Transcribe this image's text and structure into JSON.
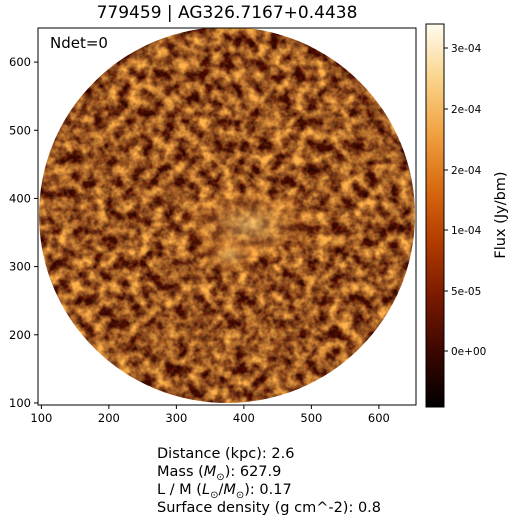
{
  "title": "779459 | AG326.7167+0.4438",
  "ndet_label": "Ndet=0",
  "colorbar": {
    "label": "Flux (Jy/bm)",
    "ticks": [
      "0e+00",
      "5e-05",
      "1e-04",
      "2e-04",
      "2e-04",
      "3e-04"
    ],
    "colormap": [
      "#000000",
      "#3a0600",
      "#7a1a00",
      "#b03c00",
      "#d86a10",
      "#f0a040",
      "#fad58c",
      "#fffbef"
    ]
  },
  "x_axis": {
    "ticks": [
      "100",
      "200",
      "300",
      "400",
      "500",
      "600"
    ],
    "range": [
      95,
      655
    ]
  },
  "y_axis": {
    "ticks": [
      "100",
      "200",
      "300",
      "400",
      "500",
      "600"
    ],
    "range": [
      97,
      650
    ]
  },
  "info": {
    "distance_label": "Distance (kpc): ",
    "distance_value": "2.6",
    "mass_label_pre": "Mass (",
    "mass_unit_main": "M",
    "mass_unit_sub": "⊙",
    "mass_label_post": "): ",
    "mass_value": "627.9",
    "lm_label_pre": "L / M (",
    "lm_unit_l": "L",
    "lm_unit_l_sub": "⊙",
    "lm_unit_slash": "/",
    "lm_unit_m": "M",
    "lm_unit_m_sub": "⊙",
    "lm_label_post": "): ",
    "lm_value": "0.17",
    "sd_label": "Surface density (g cm^-2): ",
    "sd_value": "0.8"
  }
}
